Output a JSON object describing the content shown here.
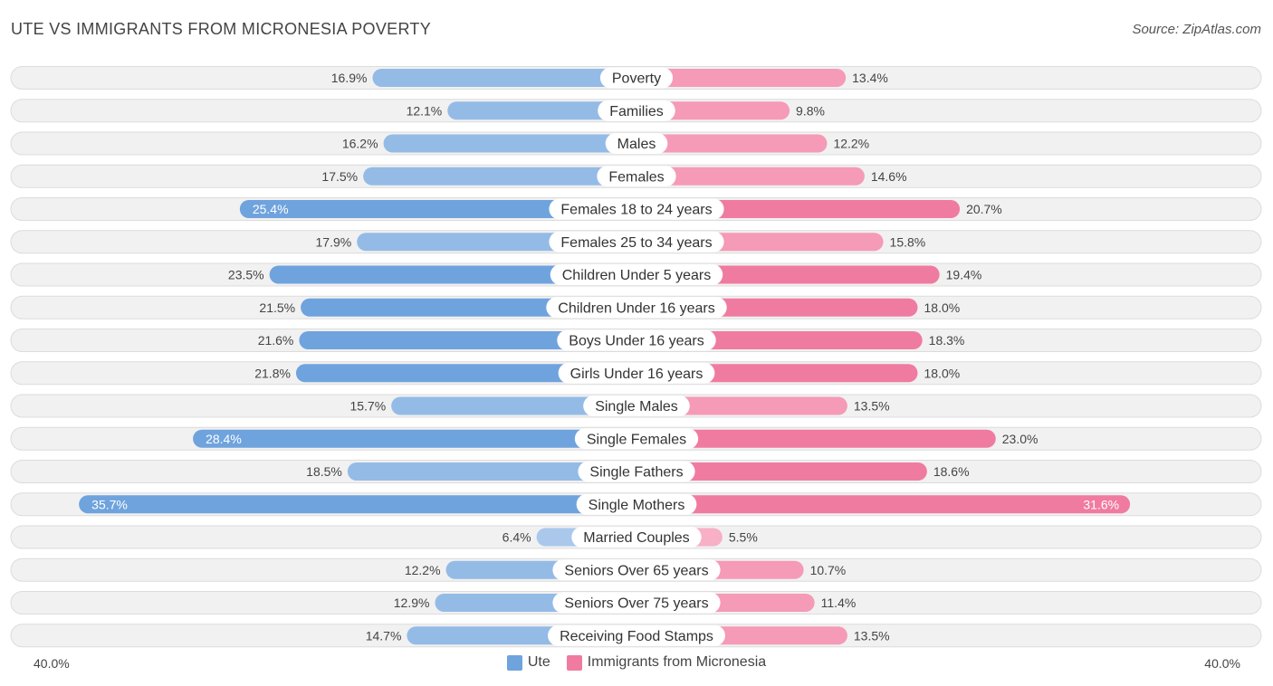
{
  "title": "UTE VS IMMIGRANTS FROM MICRONESIA POVERTY",
  "source": "Source: ZipAtlas.com",
  "axis": {
    "left_label": "40.0%",
    "right_label": "40.0%"
  },
  "legend": {
    "left": "Ute",
    "right": "Immigrants from Micronesia"
  },
  "colors": {
    "left_bar": "#6fa3dd",
    "left_bar_light": "#a9c8ec",
    "right_bar": "#f07ba0",
    "right_bar_light": "#f7b0c6",
    "row_bg": "#f1f1f1",
    "row_border": "#dcdcdc"
  },
  "chart_data": {
    "type": "bar",
    "orientation": "horizontal-diverging",
    "title": "UTE VS IMMIGRANTS FROM MICRONESIA POVERTY",
    "xlim": [
      -40,
      40
    ],
    "categories": [
      "Poverty",
      "Families",
      "Males",
      "Females",
      "Females 18 to 24 years",
      "Females 25 to 34 years",
      "Children Under 5 years",
      "Children Under 16 years",
      "Boys Under 16 years",
      "Girls Under 16 years",
      "Single Males",
      "Single Females",
      "Single Fathers",
      "Single Mothers",
      "Married Couples",
      "Seniors Over 65 years",
      "Seniors Over 75 years",
      "Receiving Food Stamps"
    ],
    "series": [
      {
        "name": "Ute",
        "values": [
          16.9,
          12.1,
          16.2,
          17.5,
          25.4,
          17.9,
          23.5,
          21.5,
          21.6,
          21.8,
          15.7,
          28.4,
          18.5,
          35.7,
          6.4,
          12.2,
          12.9,
          14.7
        ],
        "labels": [
          "16.9%",
          "12.1%",
          "16.2%",
          "17.5%",
          "25.4%",
          "17.9%",
          "23.5%",
          "21.5%",
          "21.6%",
          "21.8%",
          "15.7%",
          "28.4%",
          "18.5%",
          "35.7%",
          "6.4%",
          "12.2%",
          "12.9%",
          "14.7%"
        ]
      },
      {
        "name": "Immigrants from Micronesia",
        "values": [
          13.4,
          9.8,
          12.2,
          14.6,
          20.7,
          15.8,
          19.4,
          18.0,
          18.3,
          18.0,
          13.5,
          23.0,
          18.6,
          31.6,
          5.5,
          10.7,
          11.4,
          13.5
        ],
        "labels": [
          "13.4%",
          "9.8%",
          "12.2%",
          "14.6%",
          "20.7%",
          "15.8%",
          "19.4%",
          "18.0%",
          "18.3%",
          "18.0%",
          "13.5%",
          "23.0%",
          "18.6%",
          "31.6%",
          "5.5%",
          "10.7%",
          "11.4%",
          "13.5%"
        ]
      }
    ]
  }
}
